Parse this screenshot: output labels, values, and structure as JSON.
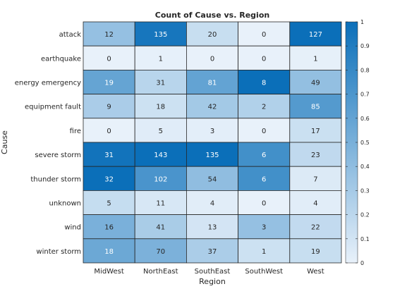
{
  "chart_data": {
    "type": "heatmap",
    "title": "Count of Cause vs. Region",
    "xlabel": "Region",
    "ylabel": "Cause",
    "x_categories": [
      "MidWest",
      "NorthEast",
      "SouthEast",
      "SouthWest",
      "West"
    ],
    "y_categories": [
      "attack",
      "earthquake",
      "energy emergency",
      "equipment fault",
      "fire",
      "severe storm",
      "thunder storm",
      "unknown",
      "wind",
      "winter storm"
    ],
    "values": [
      [
        12,
        135,
        20,
        0,
        127
      ],
      [
        0,
        1,
        0,
        0,
        1
      ],
      [
        19,
        31,
        81,
        8,
        49
      ],
      [
        9,
        18,
        42,
        2,
        85
      ],
      [
        0,
        5,
        3,
        0,
        17
      ],
      [
        31,
        143,
        135,
        6,
        23
      ],
      [
        32,
        102,
        54,
        6,
        7
      ],
      [
        5,
        11,
        4,
        0,
        4
      ],
      [
        16,
        41,
        13,
        3,
        22
      ],
      [
        18,
        70,
        37,
        1,
        19
      ]
    ],
    "color_normalization": "per column (value / column max)",
    "colorbar": {
      "range": [
        0,
        1
      ],
      "ticks": [
        "0",
        "0.1",
        "0.2",
        "0.3",
        "0.4",
        "0.5",
        "0.6",
        "0.7",
        "0.8",
        "0.9",
        "1"
      ],
      "color_low": "#e8f1fa",
      "color_high": "#0b6fb9"
    },
    "grid": true
  }
}
